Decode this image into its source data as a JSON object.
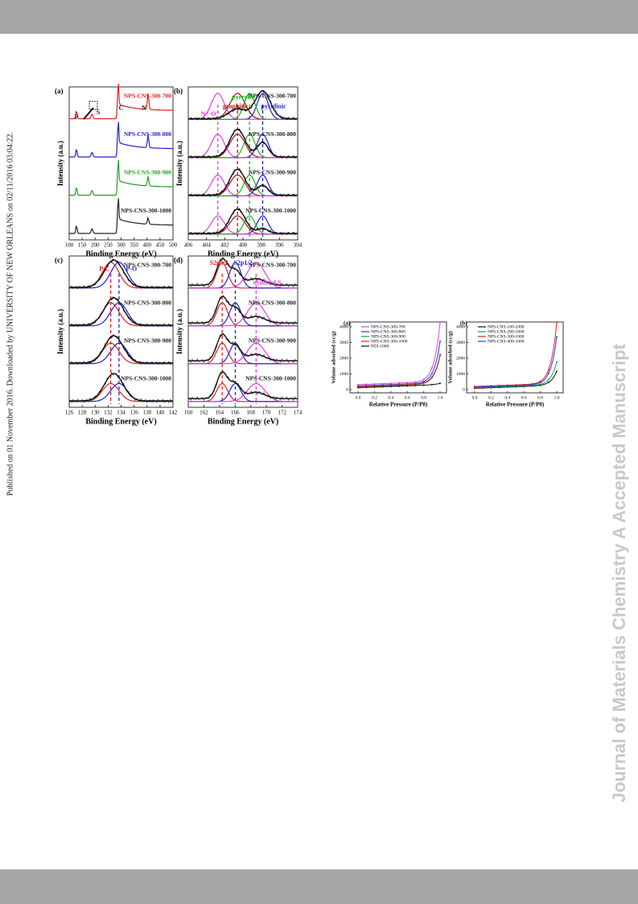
{
  "side_note": "Published on 01 November 2016. Downloaded by UNIVERSITY OF NEW ORLEANS on 02/11/2016 03:04:22.",
  "watermark": "Journal of Materials Chemistry A Accepted Manuscript",
  "figure1": {
    "panels": [
      {
        "label": "(a)",
        "xlabel": "Binding Energy (eV)",
        "ylabel": "Intensity (a.u.)",
        "xticks": [
          "100",
          "150",
          "200",
          "250",
          "300",
          "350",
          "400",
          "450",
          "500"
        ],
        "series": [
          {
            "name": "NPS-CNS-300-700",
            "color": "#e02020"
          },
          {
            "name": "NPS-CNS-300-800",
            "color": "#2020d0"
          },
          {
            "name": "NPS-CNS-300-900",
            "color": "#20a020"
          },
          {
            "name": "NPS-CNS-300-1000",
            "color": "#222222"
          }
        ],
        "annotations": [
          "P",
          "S",
          "C",
          "N"
        ]
      },
      {
        "label": "(b)",
        "xlabel": "Binding Energy (eV)",
        "ylabel": "Intensity (a.u.)",
        "xticks": [
          "406",
          "404",
          "402",
          "400",
          "398",
          "396",
          "394"
        ],
        "series": [
          {
            "name": "NPS-CNS-300-700",
            "color": "#222222"
          },
          {
            "name": "NPS-CNS-300-800",
            "color": "#222222"
          },
          {
            "name": "NPS-CNS-300-900",
            "color": "#222222"
          },
          {
            "name": "NPS-CNS-300-1000",
            "color": "#222222"
          }
        ],
        "annotations": [
          "pyrrolic",
          "graphitic",
          "N⁺-O⁻",
          "pyridinic"
        ]
      },
      {
        "label": "(c)",
        "xlabel": "Binding Energy (eV)",
        "ylabel": "Intensity (a.u.)",
        "xticks": [
          "126",
          "128",
          "130",
          "132",
          "134",
          "136",
          "138",
          "140",
          "142"
        ],
        "series": [
          {
            "name": "NPS-CNS-300-700",
            "color": "#222222"
          },
          {
            "name": "NPS-CNS-300-800",
            "color": "#222222"
          },
          {
            "name": "NPS-CNS-300-900",
            "color": "#222222"
          },
          {
            "name": "NPS-CNS-300-1000",
            "color": "#222222"
          }
        ],
        "annotations": [
          "P-C",
          "P-O"
        ]
      },
      {
        "label": "(d)",
        "xlabel": "Binding Energy (eV)",
        "ylabel": "Intensity (a.u.)",
        "xticks": [
          "160",
          "162",
          "164",
          "166",
          "168",
          "170",
          "172",
          "174"
        ],
        "series": [
          {
            "name": "NPS-CNS-300-700",
            "color": "#222222"
          },
          {
            "name": "NPS-CNS-300-800",
            "color": "#222222"
          },
          {
            "name": "NPS-CNS-300-900",
            "color": "#222222"
          },
          {
            "name": "NPS-CNS-300-1000",
            "color": "#222222"
          }
        ],
        "annotations": [
          "S2p3/2",
          "S2p1/2",
          "oxidized S"
        ]
      }
    ]
  },
  "figure2": {
    "panels": [
      {
        "label": "(a)",
        "xlabel": "Relative Pressure (P/P0)",
        "ylabel": "Volume adsorbed (cc/g)",
        "xticks": [
          "0.0",
          "0.2",
          "0.4",
          "0.6",
          "0.8",
          "1.0"
        ],
        "yticks": [
          "0",
          "1000",
          "2000",
          "3000",
          "4000"
        ],
        "legend": [
          {
            "name": "NPS-CNS-300-700",
            "color": "#e040e0"
          },
          {
            "name": "NPS-CNS-300-800",
            "color": "#2040e0"
          },
          {
            "name": "NPS-CNS-300-900",
            "color": "#20a040"
          },
          {
            "name": "NPS-CNS-300-1000",
            "color": "#e02020"
          },
          {
            "name": "PZS-1000",
            "color": "#111111"
          }
        ]
      },
      {
        "label": "(b)",
        "xlabel": "Relative Pressure (P/P0)",
        "ylabel": "Volume adsorbed (cc/g)",
        "xticks": [
          "0.0",
          "0.2",
          "0.4",
          "0.6",
          "0.8",
          "1.0"
        ],
        "yticks": [
          "0",
          "1000",
          "2000",
          "3000",
          "4000"
        ],
        "legend": [
          {
            "name": "NPS-CNS-100-1000",
            "color": "#111111"
          },
          {
            "name": "NPS-CNS-200-1000",
            "color": "#20a040"
          },
          {
            "name": "NPS-CNS-300-1000",
            "color": "#e02020"
          },
          {
            "name": "NPS-CNS-400-1000",
            "color": "#2040e0"
          }
        ]
      }
    ]
  }
}
